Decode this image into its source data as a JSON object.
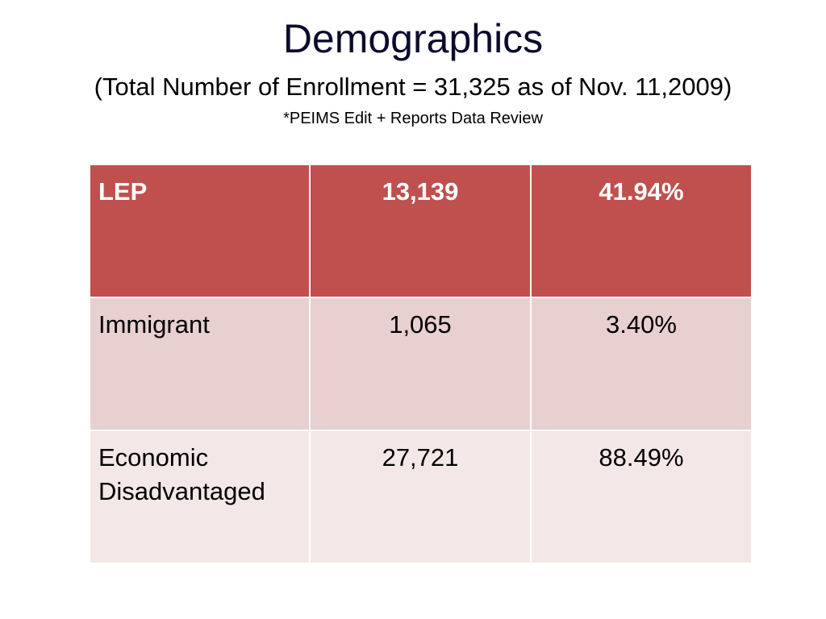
{
  "slide": {
    "title": "Demographics",
    "subtitle": "(Total Number of Enrollment = 31,325 as of Nov. 11,2009)",
    "source": "*PEIMS Edit + Reports Data Review"
  },
  "table": {
    "rows": [
      {
        "label": "LEP",
        "count": "13,139",
        "percent": "41.94%"
      },
      {
        "label": "Immigrant",
        "count": "1,065",
        "percent": "3.40%"
      },
      {
        "label": "Economic Disadvantaged",
        "count": "27,721",
        "percent": "88.49%"
      }
    ]
  },
  "colors": {
    "header_fill": "#c0504d",
    "band_dark": "#e8cfd0",
    "band_light": "#f4e7e8"
  }
}
